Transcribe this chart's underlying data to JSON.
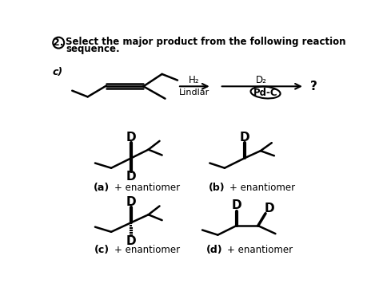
{
  "bg_color": "#ffffff",
  "text_color": "#000000",
  "reagent1_top": "H₂",
  "reagent1_bot": "Lindlar",
  "reagent2_top": "D₂",
  "reagent2_bot": "Pd-C",
  "answer_a_label": "(a)",
  "answer_a_text": "+ enantiomer",
  "answer_b_label": "(b)",
  "answer_b_text": "+ enantiomer",
  "answer_c_label": "(c)",
  "answer_c_text": "+ enantiomer",
  "answer_d_label": "(d)",
  "answer_d_text": "+ enantiomer"
}
